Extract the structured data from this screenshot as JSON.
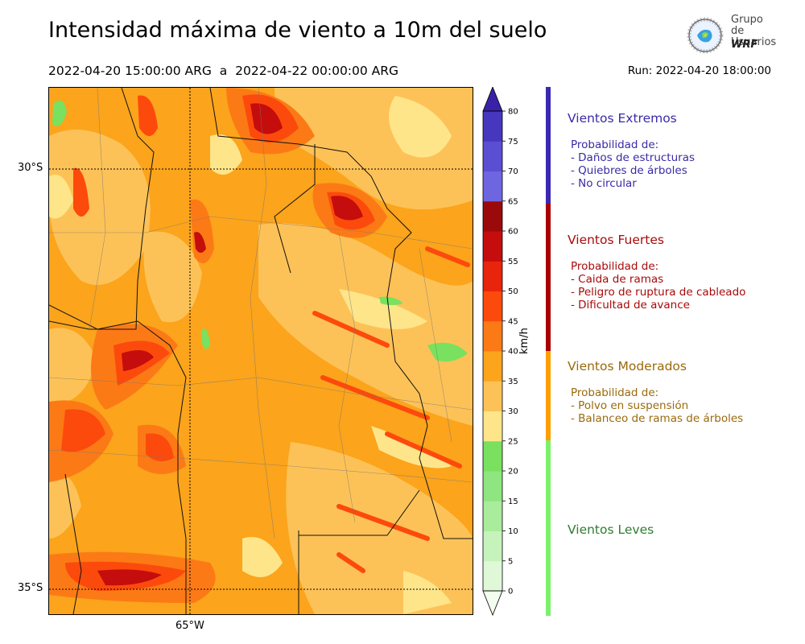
{
  "header": {
    "title": "Intensidad máxima de viento a 10m del suelo",
    "period": "2022-04-20 15:00:00 ARG  a  2022-04-22 00:00:00 ARG",
    "run": "Run: 2022-04-20 18:00:00"
  },
  "logo": {
    "line1": "Grupo de",
    "line2": "Usuarios",
    "line3": "WRF"
  },
  "map": {
    "lat_labels": [
      "30°S",
      "35°S"
    ],
    "lon_labels": [
      "65°W"
    ]
  },
  "colorbar": {
    "unit": "km/h",
    "ticks": [
      "0",
      "5",
      "10",
      "15",
      "20",
      "25",
      "30",
      "35",
      "40",
      "45",
      "50",
      "55",
      "60",
      "65",
      "70",
      "75",
      "80"
    ],
    "colors": [
      "#f2fdf0",
      "#dff9d8",
      "#c6f3bb",
      "#a9ec9c",
      "#8fe57f",
      "#79e15f",
      "#fee58a",
      "#fdc257",
      "#fba41c",
      "#fc7a16",
      "#fc4a0c",
      "#e8250c",
      "#c40d0c",
      "#9a0a0a",
      "#6e66e0",
      "#5a4ed2",
      "#4737bf",
      "#3a22a8"
    ]
  },
  "categories": [
    {
      "title": "Vientos Extremos",
      "color": "#3a2aa6",
      "bar_color": "#3a29b3",
      "lines": [
        "Probabilidad de:",
        "- Daños de estructuras",
        "- Quiebres de árboles",
        "- No circular"
      ]
    },
    {
      "title": "Vientos Fuertes",
      "color": "#a80a0a",
      "bar_color": "#a80000",
      "lines": [
        "Probabilidad de:",
        "- Caida de ramas",
        "- Peligro de ruptura de cableado",
        "- Dificultad de avance"
      ]
    },
    {
      "title": "Vientos Moderados",
      "color": "#9a6a0c",
      "bar_color": "#ff9f00",
      "lines": [
        "Probabilidad de:",
        "- Polvo en suspensión",
        "- Balanceo de ramas de árboles"
      ]
    },
    {
      "title": "Vientos Leves",
      "color": "#2e7d2e",
      "bar_color": "#7cf06c",
      "lines": []
    }
  ]
}
